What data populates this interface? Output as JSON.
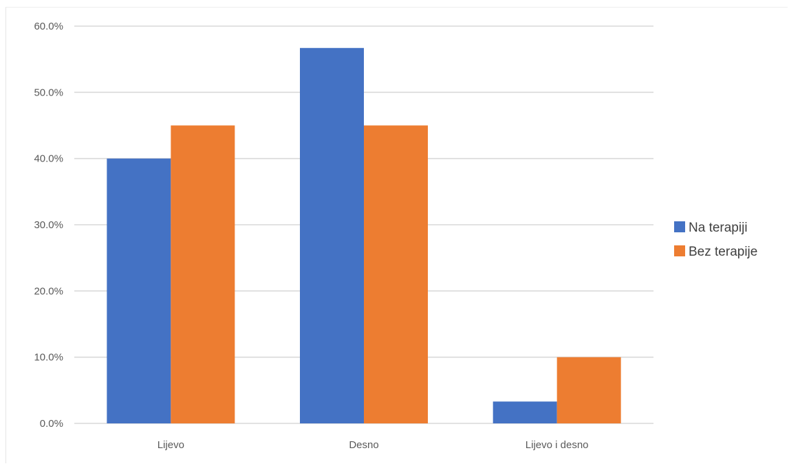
{
  "chart_data": {
    "type": "bar",
    "categories": [
      "Lijevo",
      "Desno",
      "Lijevo i desno"
    ],
    "series": [
      {
        "name": "Na terapiji",
        "values": [
          40.0,
          56.7,
          3.3
        ],
        "color": "#4472C4"
      },
      {
        "name": "Bez terapije",
        "values": [
          45.0,
          45.0,
          10.0
        ],
        "color": "#ED7D31"
      }
    ],
    "y_ticks": [
      "0.0%",
      "10.0%",
      "20.0%",
      "30.0%",
      "40.0%",
      "50.0%",
      "60.0%"
    ],
    "ylim": [
      0,
      60
    ],
    "grid": true,
    "legend_position": "right",
    "title": "",
    "xlabel": "",
    "ylabel": ""
  }
}
